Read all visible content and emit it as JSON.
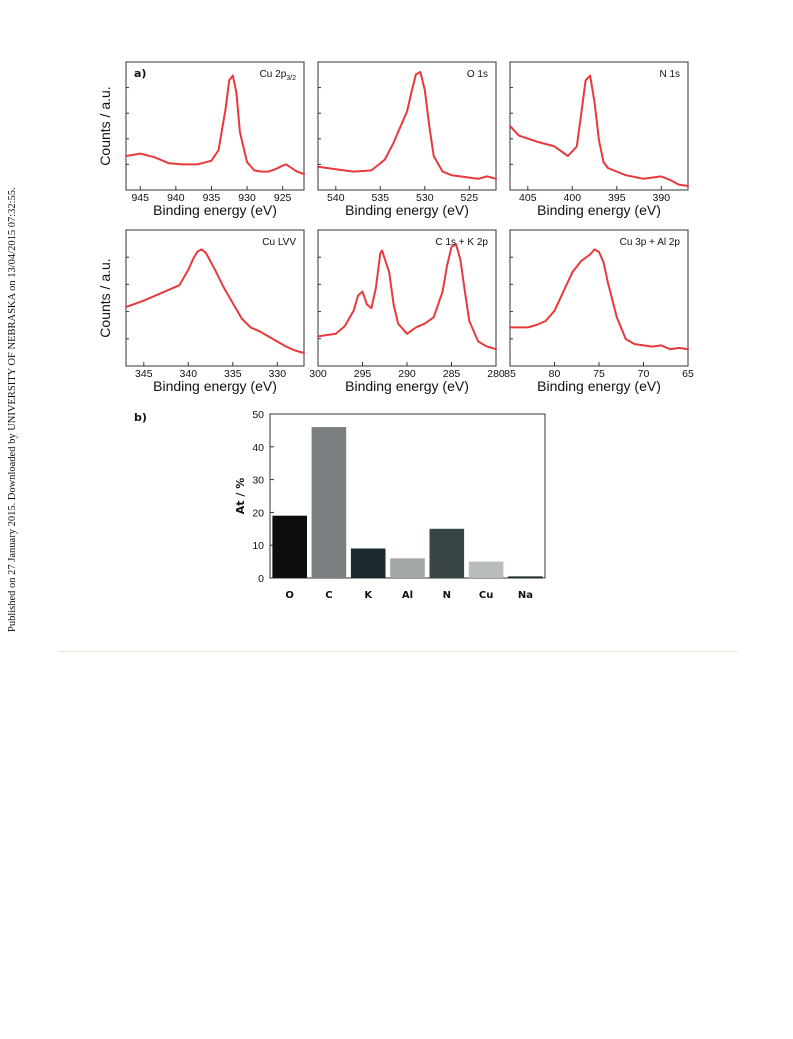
{
  "side_note": "Published on 27 January 2015. Downloaded by UNIVERSITY OF NEBRASKA on 13/04/2015 07:32:55.",
  "colors": {
    "spectrum": "#e8393d",
    "frame": "#333333",
    "rule": "#e2e6d8"
  },
  "panel_labels": {
    "a": "a)",
    "b": "b)"
  },
  "chart_data": [
    {
      "type": "line",
      "panel": "a",
      "title": "Cu 2p",
      "title_sub": "3/2",
      "xlabel": "Binding energy (eV)",
      "ylabel": "Counts / a.u.",
      "xlim": [
        947,
        922
      ],
      "ylim": [
        0,
        1
      ],
      "xticks": [
        945,
        940,
        935,
        930,
        925
      ],
      "series": [
        {
          "x": [
            947,
            945,
            943,
            941,
            939,
            937,
            935,
            934,
            933,
            932.5,
            932,
            931.5,
            931,
            930,
            929,
            928,
            927,
            926,
            925,
            924.5,
            924,
            923,
            922
          ],
          "y": [
            0.25,
            0.27,
            0.24,
            0.19,
            0.18,
            0.18,
            0.21,
            0.3,
            0.65,
            0.88,
            0.92,
            0.78,
            0.45,
            0.2,
            0.13,
            0.12,
            0.12,
            0.14,
            0.17,
            0.18,
            0.16,
            0.12,
            0.1
          ]
        }
      ]
    },
    {
      "type": "line",
      "panel": "a",
      "title": "O 1s",
      "xlabel": "Binding energy (eV)",
      "ylabel": "",
      "xlim": [
        542,
        522
      ],
      "ylim": [
        0,
        1
      ],
      "xticks": [
        540,
        535,
        530,
        525
      ],
      "series": [
        {
          "x": [
            542,
            540,
            538,
            536,
            534.5,
            533.5,
            533,
            532,
            531.5,
            531,
            530.5,
            530,
            529.5,
            529,
            528,
            527,
            526,
            525,
            524,
            523,
            522
          ],
          "y": [
            0.16,
            0.14,
            0.12,
            0.13,
            0.22,
            0.36,
            0.45,
            0.62,
            0.78,
            0.93,
            0.95,
            0.8,
            0.5,
            0.25,
            0.12,
            0.09,
            0.08,
            0.07,
            0.06,
            0.08,
            0.06
          ]
        }
      ]
    },
    {
      "type": "line",
      "panel": "a",
      "title": "N 1s",
      "xlabel": "Binding energy (eV)",
      "ylabel": "",
      "xlim": [
        407,
        387
      ],
      "ylim": [
        0,
        1
      ],
      "xticks": [
        405,
        400,
        395,
        390
      ],
      "series": [
        {
          "x": [
            407,
            406,
            404,
            402,
            400.5,
            399.5,
            399,
            398.5,
            398,
            397.5,
            397,
            396.5,
            396,
            394,
            392,
            390,
            389,
            388,
            387
          ],
          "y": [
            0.5,
            0.42,
            0.37,
            0.33,
            0.25,
            0.33,
            0.6,
            0.88,
            0.92,
            0.7,
            0.38,
            0.2,
            0.15,
            0.09,
            0.06,
            0.08,
            0.05,
            0.01,
            0.0
          ]
        }
      ]
    },
    {
      "type": "line",
      "panel": "a",
      "title": "Cu LVV",
      "xlabel": "Binding energy (eV)",
      "ylabel": "Counts / a.u.",
      "xlim": [
        347,
        327
      ],
      "ylim": [
        0,
        1
      ],
      "xticks": [
        345,
        340,
        335,
        330
      ],
      "series": [
        {
          "x": [
            347,
            345,
            343,
            341,
            340,
            339.5,
            339,
            338.5,
            338,
            337,
            336,
            335,
            334,
            333,
            332,
            331,
            330,
            329,
            328,
            327
          ],
          "y": [
            0.43,
            0.48,
            0.54,
            0.6,
            0.72,
            0.8,
            0.86,
            0.88,
            0.85,
            0.72,
            0.58,
            0.46,
            0.34,
            0.27,
            0.24,
            0.2,
            0.16,
            0.12,
            0.09,
            0.07
          ]
        }
      ]
    },
    {
      "type": "line",
      "panel": "a",
      "title": "C 1s + K 2p",
      "xlabel": "Binding energy (eV)",
      "ylabel": "",
      "xlim": [
        300,
        280
      ],
      "ylim": [
        0,
        1
      ],
      "xticks": [
        300,
        295,
        290,
        285,
        280
      ],
      "series": [
        {
          "x": [
            300,
            298,
            297,
            296,
            295.5,
            295,
            294.5,
            294,
            293.5,
            293,
            292.8,
            292,
            291.5,
            291,
            290,
            289,
            288,
            287,
            286,
            285.5,
            285,
            284.5,
            284,
            283.5,
            283,
            282,
            281,
            280
          ],
          "y": [
            0.2,
            0.22,
            0.28,
            0.4,
            0.52,
            0.55,
            0.45,
            0.42,
            0.58,
            0.85,
            0.87,
            0.7,
            0.45,
            0.3,
            0.22,
            0.27,
            0.3,
            0.35,
            0.55,
            0.75,
            0.9,
            0.92,
            0.8,
            0.55,
            0.32,
            0.16,
            0.12,
            0.1
          ]
        }
      ]
    },
    {
      "type": "line",
      "panel": "a",
      "title": "Cu 3p + Al 2p",
      "xlabel": "Binding energy (eV)",
      "ylabel": "",
      "xlim": [
        85,
        65
      ],
      "ylim": [
        0,
        1
      ],
      "xticks": [
        85,
        80,
        75,
        70,
        65
      ],
      "series": [
        {
          "x": [
            85,
            83,
            82,
            81,
            80,
            79,
            78,
            77,
            76,
            75.5,
            75,
            74.5,
            74,
            73,
            72,
            71,
            70,
            69,
            68,
            67,
            66,
            65
          ],
          "y": [
            0.27,
            0.27,
            0.29,
            0.32,
            0.4,
            0.55,
            0.7,
            0.79,
            0.84,
            0.88,
            0.86,
            0.78,
            0.62,
            0.35,
            0.18,
            0.14,
            0.13,
            0.12,
            0.13,
            0.1,
            0.11,
            0.1
          ]
        }
      ]
    },
    {
      "type": "bar",
      "panel": "b",
      "title": "",
      "xlabel": "",
      "ylabel": "At / %",
      "ylim": [
        0,
        50
      ],
      "yticks": [
        0,
        10,
        20,
        30,
        40,
        50
      ],
      "categories": [
        "O",
        "C",
        "K",
        "Al",
        "N",
        "Cu",
        "Na"
      ],
      "values": [
        19,
        46,
        9,
        6,
        15,
        5,
        0.5
      ],
      "bar_colors": [
        "#0d0d0d",
        "#7a8082",
        "#1b2a2e",
        "#a3a7a8",
        "#384446",
        "#b9bcbd",
        "#1e2b2e"
      ]
    }
  ]
}
